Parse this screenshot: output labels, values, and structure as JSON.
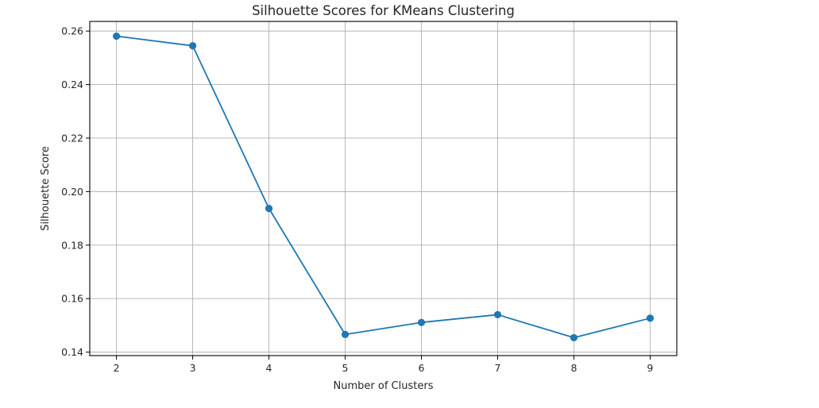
{
  "chart_data": {
    "type": "line",
    "title": "Silhouette Scores for KMeans Clustering",
    "xlabel": "Number of Clusters",
    "ylabel": "Silhouette Score",
    "x": [
      2,
      3,
      4,
      5,
      6,
      7,
      8,
      9
    ],
    "xlim": [
      1.65,
      9.35
    ],
    "ylim": [
      0.1387,
      0.2636
    ],
    "x_ticks": [
      2,
      3,
      4,
      5,
      6,
      7,
      8,
      9
    ],
    "y_ticks": [
      0.14,
      0.16,
      0.18,
      0.2,
      0.22,
      0.24,
      0.26
    ],
    "y_tick_labels": [
      "0.14",
      "0.16",
      "0.18",
      "0.20",
      "0.22",
      "0.24",
      "0.26"
    ],
    "grid": true,
    "marker": "circle",
    "series": [
      {
        "values": [
          0.2581,
          0.2545,
          0.1937,
          0.1466,
          0.1511,
          0.154,
          0.1454,
          0.1527
        ],
        "color": "#1f77b4"
      }
    ]
  }
}
